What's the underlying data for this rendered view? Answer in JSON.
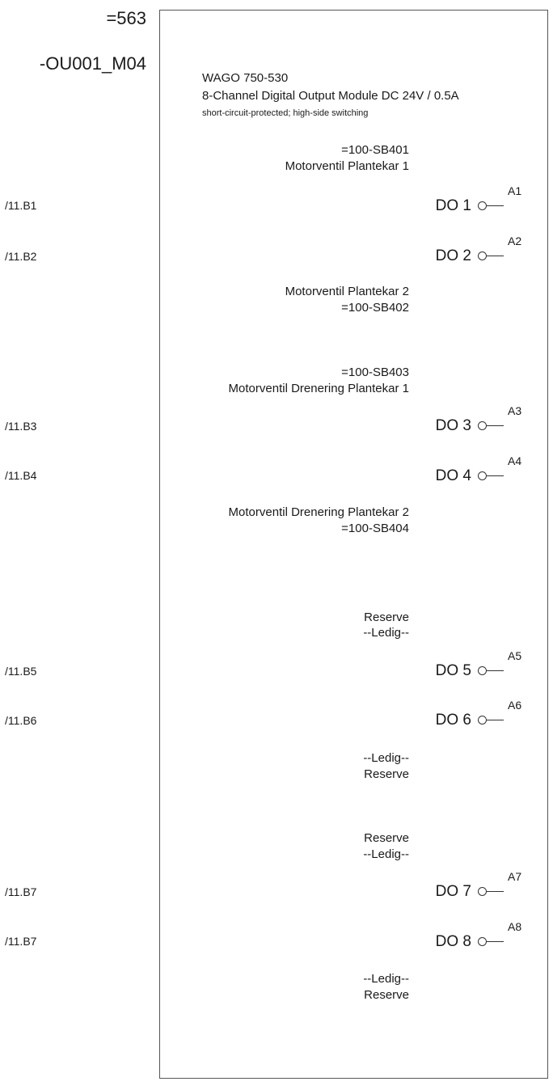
{
  "header": {
    "plant": "=563",
    "device": "-OU001_M04"
  },
  "module": {
    "name": "WAGO 750-530",
    "description": "8-Channel Digital Output Module DC 24V / 0.5A",
    "note": "short-circuit-protected; high-side switching"
  },
  "labels": [
    {
      "text": "=100-SB401"
    },
    {
      "text": "Motorventil Plantekar 1"
    },
    {
      "text": "Motorventil Plantekar 2"
    },
    {
      "text": "=100-SB402"
    },
    {
      "text": "=100-SB403"
    },
    {
      "text": "Motorventil Drenering Plantekar 1"
    },
    {
      "text": "Motorventil Drenering Plantekar 2"
    },
    {
      "text": "=100-SB404"
    },
    {
      "text": "Reserve"
    },
    {
      "text": "--Ledig--"
    },
    {
      "text": "--Ledig--"
    },
    {
      "text": "Reserve"
    },
    {
      "text": "Reserve"
    },
    {
      "text": "--Ledig--"
    },
    {
      "text": "--Ledig--"
    },
    {
      "text": "Reserve"
    }
  ],
  "channels": [
    {
      "ref": "/11.B1",
      "label": "DO 1",
      "terminal": "A1"
    },
    {
      "ref": "/11.B2",
      "label": "DO 2",
      "terminal": "A2"
    },
    {
      "ref": "/11.B3",
      "label": "DO 3",
      "terminal": "A3"
    },
    {
      "ref": "/11.B4",
      "label": "DO 4",
      "terminal": "A4"
    },
    {
      "ref": "/11.B5",
      "label": "DO 5",
      "terminal": "A5"
    },
    {
      "ref": "/11.B6",
      "label": "DO 6",
      "terminal": "A6"
    },
    {
      "ref": "/11.B7",
      "label": "DO 7",
      "terminal": "A7"
    },
    {
      "ref": "/11.B7",
      "label": "DO 8",
      "terminal": "A8"
    }
  ],
  "colors": {
    "line": "#333333",
    "text": "#1a1a1a"
  }
}
